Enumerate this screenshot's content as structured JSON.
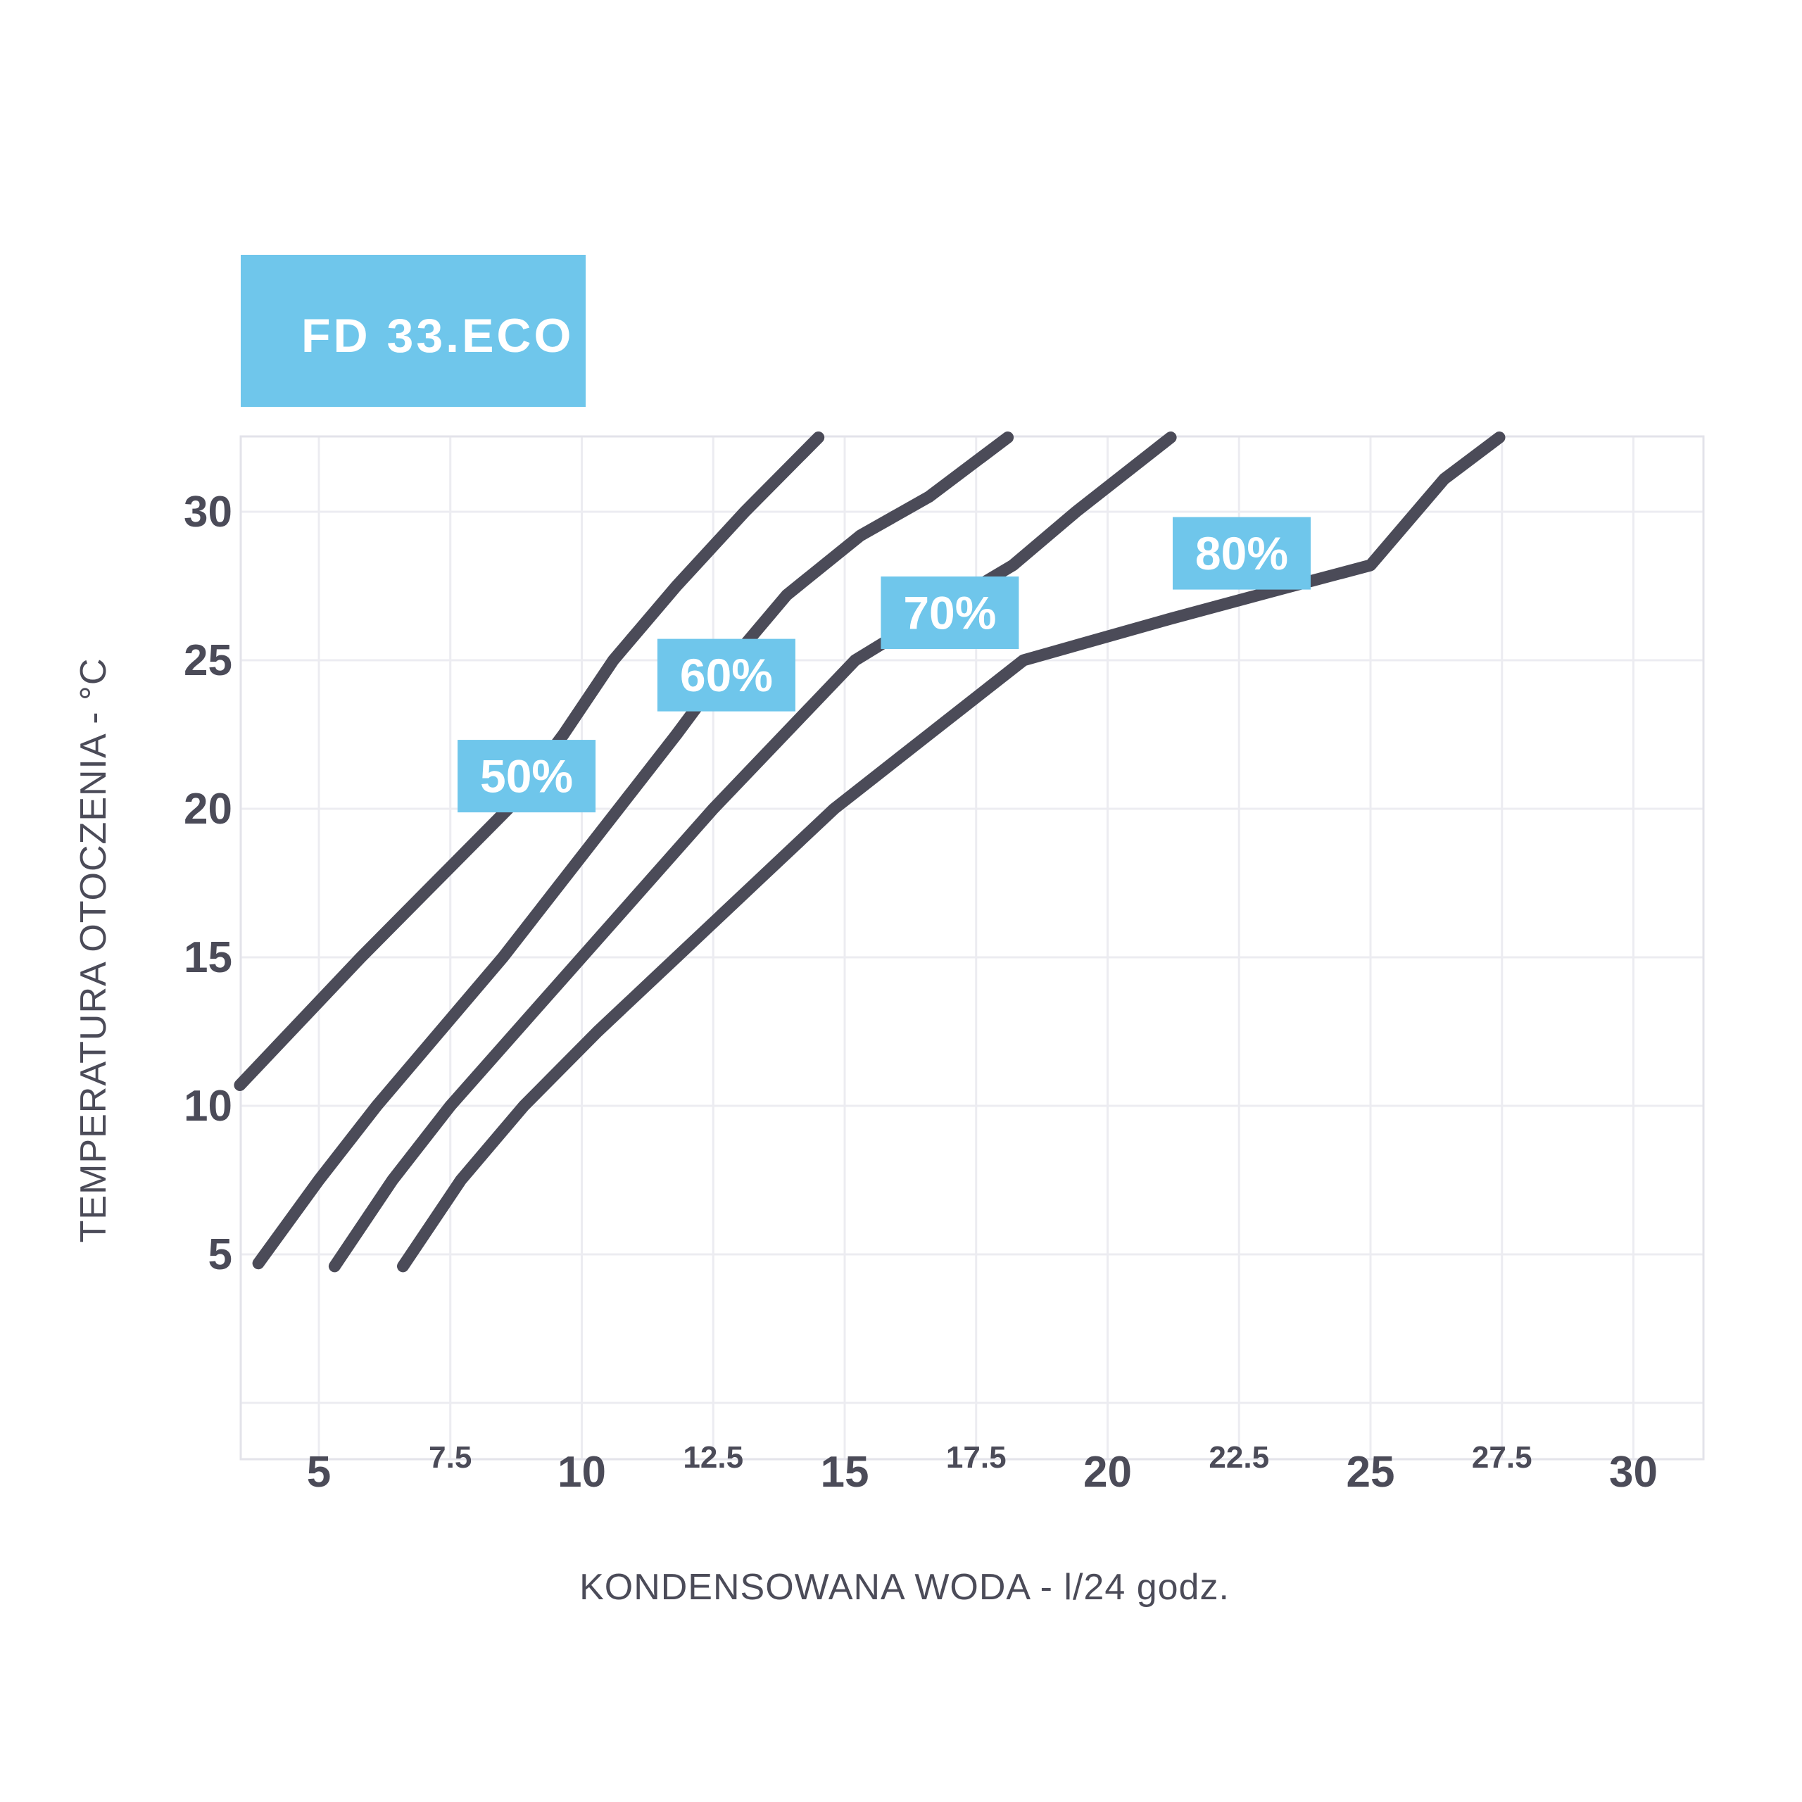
{
  "badge": {
    "label": "FD 33.ECO",
    "bg_color": "#6FC6EB",
    "text_color": "#FFFFFF"
  },
  "colors": {
    "curve": "#4B4B58",
    "grid": "#ECECF1",
    "plot_border": "#E3E3EA",
    "tick_text": "#4B4B58",
    "axis_title_text": "#4B4B58",
    "label_box_bg": "#6FC6EB",
    "label_box_text": "#FFFFFF",
    "background": "#FFFFFF"
  },
  "chart_data": {
    "type": "line",
    "title": "FD 33.ECO",
    "xlabel": "KONDENSOWANA WODA - l/24 godz.",
    "ylabel": "TEMPERATURA OTOCZENIA - °C",
    "xlim": [
      3.5,
      31.3
    ],
    "ylim": [
      -1.9,
      32.5
    ],
    "grid": true,
    "x_major_ticks": [
      5,
      10,
      15,
      20,
      25,
      30
    ],
    "x_minor_ticks": [
      7.5,
      12.5,
      17.5,
      22.5,
      27.5
    ],
    "y_ticks": [
      5,
      10,
      15,
      20,
      25,
      30
    ],
    "y_gridlines": [
      0,
      5,
      10,
      15,
      20,
      25,
      30
    ],
    "x_gridlines": [
      5,
      7.5,
      10,
      12.5,
      15,
      17.5,
      20,
      22.5,
      25,
      27.5,
      30
    ],
    "legend_position": "on-curve-labels",
    "series": [
      {
        "name": "50%",
        "label": "50%",
        "label_center": {
          "x": 8.95,
          "y": 21.1
        },
        "points": [
          [
            3.5,
            10.7
          ],
          [
            5.8,
            15
          ],
          [
            7.2,
            17.5
          ],
          [
            8.6,
            20
          ],
          [
            9.65,
            22.5
          ],
          [
            10.6,
            25
          ],
          [
            11.8,
            27.5
          ],
          [
            13.1,
            30
          ],
          [
            14.5,
            32.5
          ]
        ]
      },
      {
        "name": "60%",
        "label": "60%",
        "label_center": {
          "x": 12.75,
          "y": 24.5
        },
        "points": [
          [
            3.85,
            4.7
          ],
          [
            5.0,
            7.5
          ],
          [
            6.1,
            10
          ],
          [
            7.3,
            12.5
          ],
          [
            8.5,
            15
          ],
          [
            9.6,
            17.5
          ],
          [
            10.7,
            20
          ],
          [
            11.8,
            22.5
          ],
          [
            12.85,
            25
          ],
          [
            13.9,
            27.2
          ],
          [
            15.3,
            29.2
          ],
          [
            16.6,
            30.5
          ],
          [
            18.1,
            32.5
          ]
        ]
      },
      {
        "name": "70%",
        "label": "70%",
        "label_center": {
          "x": 17.0,
          "y": 26.6
        },
        "points": [
          [
            5.3,
            4.6
          ],
          [
            6.4,
            7.5
          ],
          [
            7.5,
            10
          ],
          [
            8.75,
            12.5
          ],
          [
            10.0,
            15
          ],
          [
            11.25,
            17.5
          ],
          [
            12.5,
            20
          ],
          [
            13.85,
            22.5
          ],
          [
            15.2,
            25
          ],
          [
            16.4,
            26.3
          ],
          [
            18.2,
            28.2
          ],
          [
            19.4,
            30
          ],
          [
            21.2,
            32.5
          ]
        ]
      },
      {
        "name": "80%",
        "label": "80%",
        "label_center": {
          "x": 22.55,
          "y": 28.6
        },
        "points": [
          [
            6.6,
            4.6
          ],
          [
            7.7,
            7.5
          ],
          [
            8.9,
            10
          ],
          [
            10.3,
            12.5
          ],
          [
            11.8,
            15
          ],
          [
            13.3,
            17.5
          ],
          [
            14.8,
            20
          ],
          [
            16.6,
            22.5
          ],
          [
            18.4,
            25
          ],
          [
            21.2,
            26.4
          ],
          [
            23.3,
            27.4
          ],
          [
            25.0,
            28.2
          ],
          [
            26.4,
            31.1
          ],
          [
            27.45,
            32.5
          ]
        ]
      }
    ]
  }
}
